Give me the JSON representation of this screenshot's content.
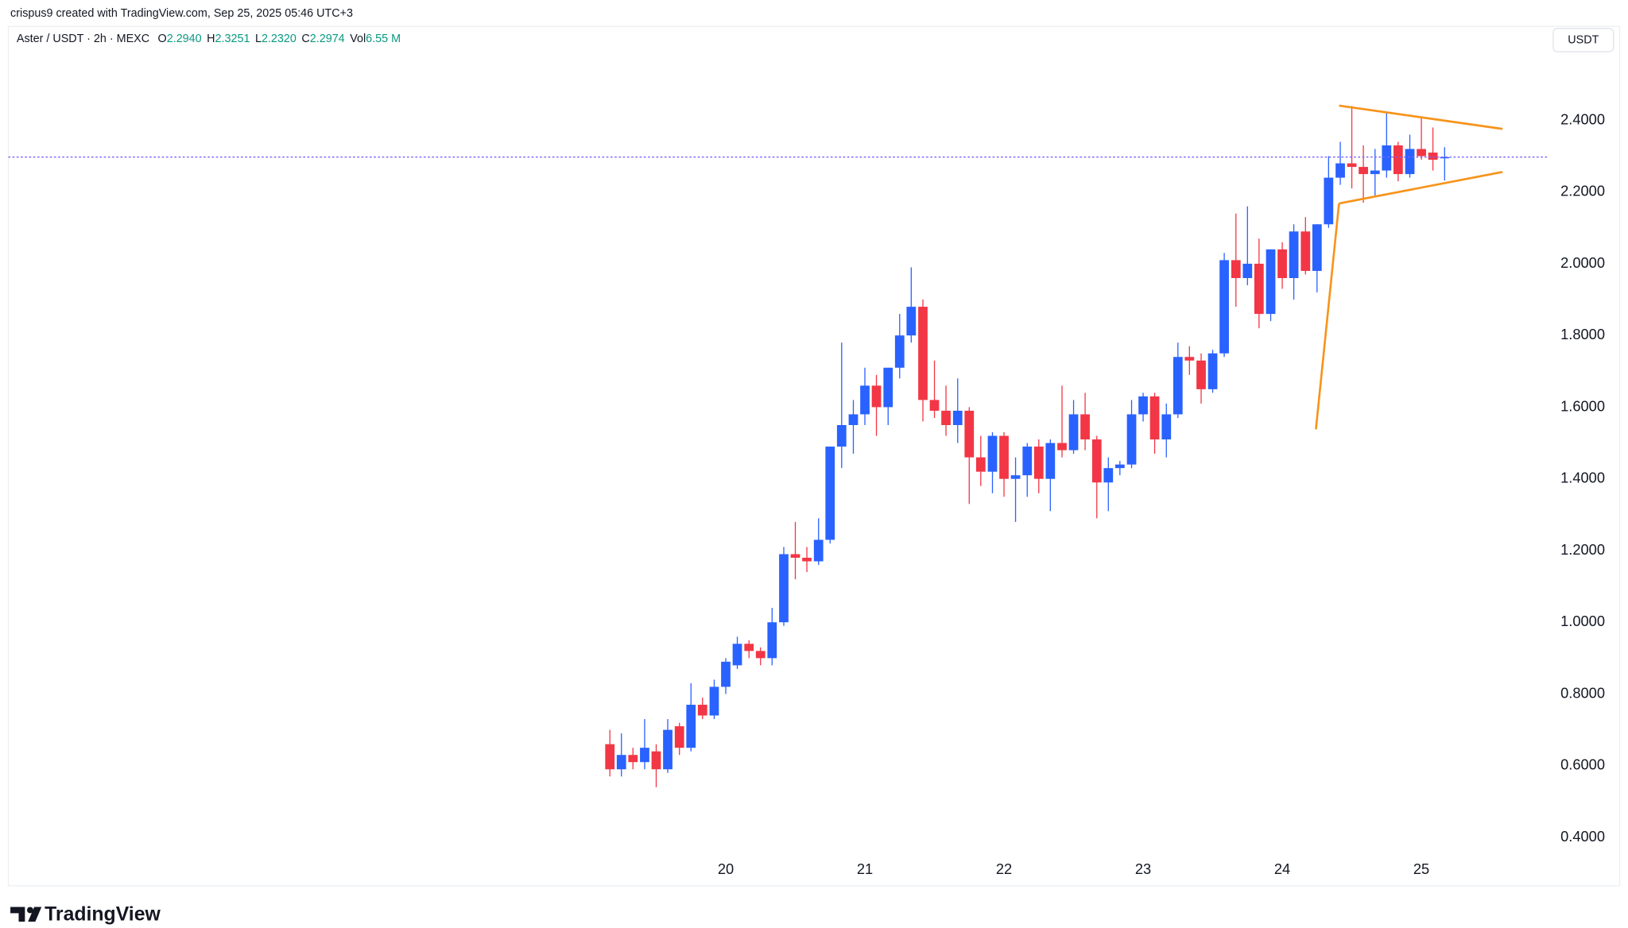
{
  "chart_data": {
    "type": "candlestick",
    "header": "crispus9 created with TradingView.com, Sep 25, 2025 05:46 UTC+3",
    "title": "Aster / USDT · 2h · MEXC",
    "ohlc_legend": [
      {
        "label": "O",
        "value": "2.2940"
      },
      {
        "label": "H",
        "value": "2.3251"
      },
      {
        "label": "L",
        "value": "2.2320"
      },
      {
        "label": "C",
        "value": "2.2974"
      },
      {
        "label": "Vol",
        "value": "6.55 M"
      }
    ],
    "currency": "USDT",
    "brand": "TradingView",
    "up_color": "#2962ff",
    "down_color": "#f23645",
    "legend_color": "#089981",
    "last_price_color": "#7b61ff",
    "x": [
      19.167,
      19.25,
      19.333,
      19.417,
      19.5,
      19.583,
      19.667,
      19.75,
      19.833,
      19.917,
      20,
      20.083,
      20.167,
      20.25,
      20.333,
      20.417,
      20.5,
      20.583,
      20.667,
      20.75,
      20.833,
      20.917,
      21,
      21.083,
      21.167,
      21.25,
      21.333,
      21.417,
      21.5,
      21.583,
      21.667,
      21.75,
      21.833,
      21.917,
      22,
      22.083,
      22.167,
      22.25,
      22.333,
      22.417,
      22.5,
      22.583,
      22.667,
      22.75,
      22.833,
      22.917,
      23,
      23.083,
      23.167,
      23.25,
      23.333,
      23.417,
      23.5,
      23.583,
      23.667,
      23.75,
      23.833,
      23.917,
      24,
      24.083,
      24.167,
      24.25,
      24.333,
      24.417,
      24.5,
      24.583,
      24.667,
      24.75,
      24.833,
      24.917,
      25,
      25.083,
      25.167
    ],
    "open": [
      0.66,
      0.59,
      0.63,
      0.61,
      0.64,
      0.59,
      0.71,
      0.65,
      0.77,
      0.74,
      0.82,
      0.88,
      0.94,
      0.92,
      0.9,
      1.0,
      1.19,
      1.18,
      1.17,
      1.23,
      1.49,
      1.55,
      1.58,
      1.66,
      1.6,
      1.71,
      1.8,
      1.88,
      1.62,
      1.59,
      1.55,
      1.59,
      1.46,
      1.42,
      1.52,
      1.4,
      1.41,
      1.49,
      1.4,
      1.5,
      1.48,
      1.58,
      1.51,
      1.39,
      1.43,
      1.44,
      1.58,
      1.63,
      1.51,
      1.58,
      1.74,
      1.73,
      1.65,
      1.75,
      2.01,
      1.96,
      2.0,
      1.86,
      2.04,
      1.96,
      2.09,
      1.98,
      2.11,
      2.24,
      2.28,
      2.27,
      2.25,
      2.26,
      2.33,
      2.25,
      2.32,
      2.31,
      2.294
    ],
    "high": [
      0.7,
      0.69,
      0.65,
      0.73,
      0.66,
      0.73,
      0.72,
      0.83,
      0.79,
      0.84,
      0.9,
      0.96,
      0.95,
      0.93,
      1.04,
      1.21,
      1.28,
      1.21,
      1.29,
      1.49,
      1.78,
      1.62,
      1.71,
      1.69,
      1.71,
      1.86,
      1.99,
      1.9,
      1.73,
      1.66,
      1.68,
      1.6,
      1.52,
      1.53,
      1.53,
      1.46,
      1.5,
      1.51,
      1.51,
      1.66,
      1.62,
      1.64,
      1.52,
      1.46,
      1.45,
      1.62,
      1.64,
      1.64,
      1.61,
      1.78,
      1.77,
      1.75,
      1.76,
      2.03,
      2.14,
      2.16,
      2.07,
      2.04,
      2.06,
      2.11,
      2.13,
      2.11,
      2.3,
      2.34,
      2.44,
      2.33,
      2.32,
      2.42,
      2.34,
      2.36,
      2.41,
      2.38,
      2.3251
    ],
    "low": [
      0.57,
      0.57,
      0.59,
      0.59,
      0.54,
      0.58,
      0.63,
      0.64,
      0.73,
      0.73,
      0.8,
      0.87,
      0.9,
      0.88,
      0.88,
      0.99,
      1.12,
      1.14,
      1.16,
      1.22,
      1.43,
      1.47,
      1.55,
      1.52,
      1.55,
      1.68,
      1.78,
      1.56,
      1.57,
      1.52,
      1.5,
      1.33,
      1.38,
      1.36,
      1.35,
      1.28,
      1.35,
      1.36,
      1.31,
      1.46,
      1.47,
      1.48,
      1.29,
      1.31,
      1.41,
      1.43,
      1.56,
      1.47,
      1.46,
      1.57,
      1.69,
      1.61,
      1.64,
      1.74,
      1.88,
      1.94,
      1.82,
      1.84,
      1.93,
      1.9,
      1.97,
      1.92,
      2.1,
      2.22,
      2.21,
      2.17,
      2.19,
      2.24,
      2.23,
      2.24,
      2.29,
      2.26,
      2.232
    ],
    "close": [
      0.59,
      0.63,
      0.61,
      0.65,
      0.59,
      0.7,
      0.65,
      0.77,
      0.74,
      0.82,
      0.89,
      0.94,
      0.92,
      0.9,
      1.0,
      1.19,
      1.18,
      1.17,
      1.23,
      1.49,
      1.55,
      1.58,
      1.66,
      1.6,
      1.71,
      1.8,
      1.88,
      1.62,
      1.59,
      1.55,
      1.59,
      1.46,
      1.42,
      1.52,
      1.4,
      1.41,
      1.49,
      1.4,
      1.5,
      1.48,
      1.58,
      1.51,
      1.39,
      1.43,
      1.44,
      1.58,
      1.63,
      1.51,
      1.58,
      1.74,
      1.73,
      1.65,
      1.75,
      2.01,
      1.96,
      2.0,
      1.86,
      2.04,
      1.96,
      2.09,
      1.98,
      2.11,
      2.24,
      2.28,
      2.27,
      2.25,
      2.26,
      2.33,
      2.25,
      2.32,
      2.3,
      2.29,
      2.2974
    ],
    "xlim": [
      14.843,
      25.918
    ],
    "xticks": [
      20,
      21,
      22,
      23,
      24,
      25
    ],
    "ylim": [
      0.265,
      2.662
    ],
    "yticks": [
      {
        "value": 0.4,
        "label": "0.4000"
      },
      {
        "value": 0.6,
        "label": "0.6000"
      },
      {
        "value": 0.8,
        "label": "0.8000"
      },
      {
        "value": 1.0,
        "label": "1.0000"
      },
      {
        "value": 1.2,
        "label": "1.2000"
      },
      {
        "value": 1.4,
        "label": "1.4000"
      },
      {
        "value": 1.6,
        "label": "1.6000"
      },
      {
        "value": 1.8,
        "label": "1.8000"
      },
      {
        "value": 2.0,
        "label": "2.0000"
      },
      {
        "value": 2.2,
        "label": "2.2000"
      },
      {
        "value": 2.4,
        "label": "2.4000"
      }
    ],
    "drawings": [
      {
        "color": "#f7931a",
        "x": [
          24.242,
          24.408
        ],
        "y": [
          1.538,
          2.168
        ]
      },
      {
        "color": "#f7931a",
        "x": [
          24.408,
          25.583
        ],
        "y": [
          2.168,
          2.256
        ]
      },
      {
        "color": "#f7931a",
        "x": [
          24.408,
          25.583
        ],
        "y": [
          2.441,
          2.376
        ]
      }
    ]
  }
}
